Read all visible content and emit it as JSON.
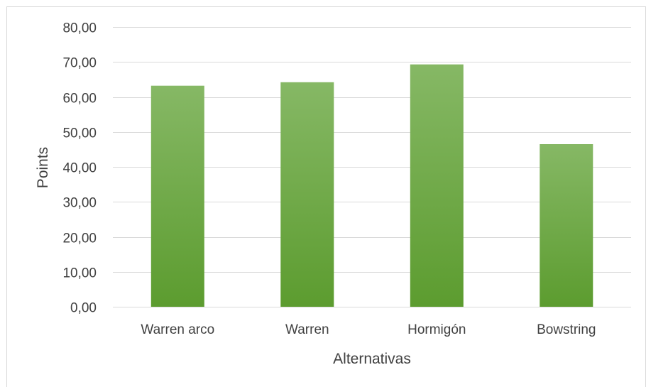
{
  "chart_data": {
    "type": "bar",
    "categories": [
      "Warren arco",
      "Warren",
      "Hormigón",
      "Bowstring"
    ],
    "values": [
      63.2,
      64.2,
      69.3,
      46.5
    ],
    "title": "",
    "xlabel": "Alternativas",
    "ylabel": "Points",
    "ylim": [
      0,
      80
    ],
    "ytick_step": 10,
    "ytick_labels": [
      "0,00",
      "10,00",
      "20,00",
      "30,00",
      "40,00",
      "50,00",
      "60,00",
      "70,00",
      "80,00"
    ],
    "grid": true,
    "legend": "none",
    "colors": {
      "bar_top": "#86b865",
      "bar_bottom": "#5c9c2f",
      "grid": "#d9d9d9",
      "text": "#404040",
      "border": "#d9d9d9"
    }
  }
}
